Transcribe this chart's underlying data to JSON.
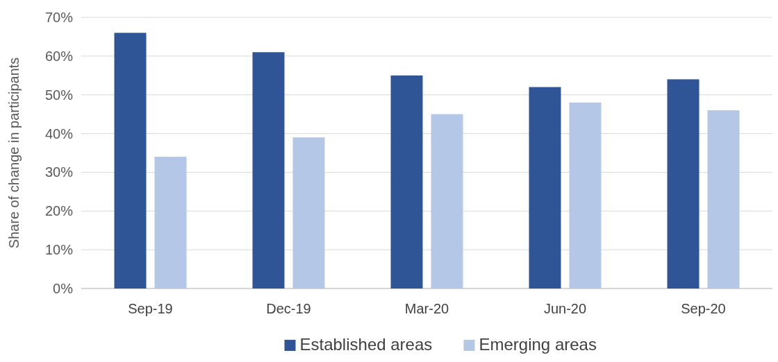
{
  "chart_data": {
    "type": "bar",
    "ylabel": "Share of change in participants",
    "categories": [
      "Sep-19",
      "Dec-19",
      "Mar-20",
      "Jun-20",
      "Sep-20"
    ],
    "series": [
      {
        "name": "Established areas",
        "color": "#2f5597",
        "values": [
          66,
          61,
          55,
          52,
          54
        ]
      },
      {
        "name": "Emerging areas",
        "color": "#b4c7e7",
        "values": [
          34,
          39,
          45,
          48,
          46
        ]
      }
    ],
    "ylim": [
      0,
      70
    ],
    "yticks": [
      {
        "value": 0,
        "label": "0%"
      },
      {
        "value": 10,
        "label": "10%"
      },
      {
        "value": 20,
        "label": "20%"
      },
      {
        "value": 30,
        "label": "30%"
      },
      {
        "value": 40,
        "label": "40%"
      },
      {
        "value": 50,
        "label": "50%"
      },
      {
        "value": 60,
        "label": "60%"
      },
      {
        "value": 70,
        "label": "70%"
      }
    ],
    "grid": "y",
    "legend": "bottom"
  }
}
